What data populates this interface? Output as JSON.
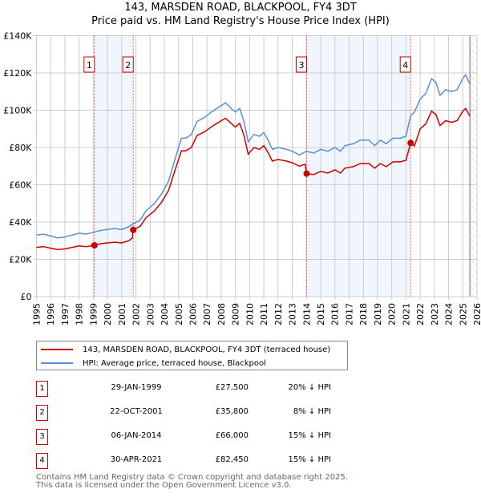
{
  "title_line1": "143, MARSDEN ROAD, BLACKPOOL, FY4 3DT",
  "title_line2": "Price paid vs. HM Land Registry's House Price Index (HPI)",
  "chart_data": {
    "type": "line",
    "title": "143, MARSDEN ROAD, BLACKPOOL, FY4 3DT — Price paid vs. HM Land Registry's House Price Index (HPI)",
    "xlim": [
      1995,
      2026
    ],
    "ylim": [
      0,
      140000
    ],
    "x_ticks": [
      "1995",
      "1996",
      "1997",
      "1998",
      "1999",
      "2000",
      "2001",
      "2002",
      "2003",
      "2004",
      "2005",
      "2006",
      "2007",
      "2008",
      "2009",
      "2010",
      "2011",
      "2012",
      "2013",
      "2014",
      "2015",
      "2016",
      "2017",
      "2018",
      "2019",
      "2020",
      "2021",
      "2022",
      "2023",
      "2024",
      "2025",
      "2026"
    ],
    "y_ticks": [
      {
        "v": 0,
        "label": "£0"
      },
      {
        "v": 20000,
        "label": "£20K"
      },
      {
        "v": 40000,
        "label": "£40K"
      },
      {
        "v": 60000,
        "label": "£60K"
      },
      {
        "v": 80000,
        "label": "£80K"
      },
      {
        "v": 100000,
        "label": "£100K"
      },
      {
        "v": 120000,
        "label": "£120K"
      },
      {
        "v": 140000,
        "label": "£140K"
      }
    ],
    "grid": true,
    "series": [
      {
        "name": "143, MARSDEN ROAD, BLACKPOOL, FY4 3DT (terraced house)",
        "color": "#cc0000",
        "x": [
          1995.0,
          1995.5,
          1996.0,
          1996.5,
          1997.0,
          1997.5,
          1998.0,
          1998.5,
          1999.08,
          1999.5,
          2000.0,
          2000.5,
          2001.0,
          2001.5,
          2001.75,
          2001.81,
          2002.3,
          2002.7,
          2003.3,
          2003.8,
          2004.3,
          2004.8,
          2005.2,
          2005.5,
          2005.9,
          2006.3,
          2006.8,
          2007.3,
          2007.7,
          2008.3,
          2008.7,
          2009.0,
          2009.3,
          2009.6,
          2009.9,
          2010.3,
          2010.7,
          2011.0,
          2011.3,
          2011.6,
          2012.0,
          2012.6,
          2013.0,
          2013.5,
          2013.9,
          2014.01,
          2014.5,
          2015.0,
          2015.5,
          2016.0,
          2016.4,
          2016.7,
          2017.3,
          2017.8,
          2018.4,
          2018.8,
          2019.2,
          2019.6,
          2020.1,
          2020.6,
          2021.0,
          2021.33,
          2021.6,
          2022.0,
          2022.4,
          2022.8,
          2023.1,
          2023.4,
          2023.8,
          2024.2,
          2024.6,
          2025.0,
          2025.2,
          2025.5
        ],
        "y": [
          26400,
          26800,
          26000,
          25200,
          25600,
          26400,
          27200,
          26800,
          27500,
          28400,
          28800,
          29200,
          28800,
          30000,
          31500,
          35800,
          37700,
          42300,
          46000,
          50600,
          57000,
          69000,
          78200,
          78200,
          80000,
          86500,
          88300,
          91000,
          93000,
          95700,
          93000,
          91000,
          93000,
          86500,
          76400,
          80000,
          79000,
          81000,
          77300,
          72700,
          73600,
          72700,
          71800,
          70000,
          71000,
          66000,
          65500,
          67200,
          66300,
          68000,
          66300,
          68900,
          69700,
          71400,
          71400,
          68900,
          71400,
          69700,
          72300,
          72300,
          73100,
          82450,
          80800,
          90000,
          92700,
          99500,
          97800,
          91800,
          94400,
          93500,
          94400,
          99500,
          101000,
          96900
        ]
      },
      {
        "name": "HPI: Average price, terraced house, Blackpool",
        "color": "#5b8fd4",
        "x": [
          1995.0,
          1995.5,
          1996.0,
          1996.5,
          1997.0,
          1997.5,
          1998.0,
          1998.5,
          1999.0,
          1999.5,
          2000.0,
          2000.5,
          2001.0,
          2001.5,
          2001.8,
          2002.3,
          2002.7,
          2003.3,
          2003.8,
          2004.3,
          2004.8,
          2005.2,
          2005.5,
          2005.9,
          2006.3,
          2006.8,
          2007.3,
          2007.7,
          2008.3,
          2008.7,
          2009.0,
          2009.3,
          2009.6,
          2009.9,
          2010.3,
          2010.7,
          2011.0,
          2011.3,
          2011.6,
          2012.0,
          2012.6,
          2013.0,
          2013.5,
          2014.0,
          2014.5,
          2015.0,
          2015.5,
          2016.0,
          2016.4,
          2016.7,
          2017.3,
          2017.8,
          2018.4,
          2018.8,
          2019.2,
          2019.6,
          2020.1,
          2020.6,
          2021.0,
          2021.33,
          2021.6,
          2022.0,
          2022.4,
          2022.8,
          2023.1,
          2023.4,
          2023.8,
          2024.2,
          2024.6,
          2025.0,
          2025.2,
          2025.5
        ],
        "y": [
          33000,
          33500,
          32500,
          31500,
          32000,
          33000,
          34000,
          33500,
          34500,
          35500,
          36000,
          36500,
          36000,
          37500,
          39000,
          41000,
          46000,
          50000,
          55000,
          62000,
          75000,
          85000,
          85000,
          87000,
          94000,
          96000,
          99000,
          101000,
          104000,
          101000,
          99000,
          101000,
          94000,
          83000,
          87000,
          86000,
          88000,
          84000,
          79000,
          80000,
          79000,
          78000,
          76000,
          78000,
          77000,
          79000,
          78000,
          80000,
          78000,
          81000,
          82000,
          84000,
          84000,
          81000,
          84000,
          82000,
          85000,
          85000,
          86000,
          97000,
          99000,
          106000,
          109000,
          117000,
          115000,
          108000,
          111000,
          110000,
          111000,
          117000,
          119000,
          114000
        ]
      }
    ],
    "annotations": [
      {
        "label": "1",
        "x": 1999.08,
        "y": 27500
      },
      {
        "label": "2",
        "x": 2001.81,
        "y": 35800
      },
      {
        "label": "3",
        "x": 2014.01,
        "y": 66000
      },
      {
        "label": "4",
        "x": 2021.33,
        "y": 82450
      }
    ],
    "shaded_ranges": [
      [
        1999.08,
        2001.81
      ],
      [
        2014.01,
        2021.33
      ]
    ],
    "hatched_from": 2025.5,
    "legend_position": "below"
  },
  "legend": [
    {
      "label": "143, MARSDEN ROAD, BLACKPOOL, FY4 3DT (terraced house)",
      "color": "#cc0000"
    },
    {
      "label": "HPI: Average price, terraced house, Blackpool",
      "color": "#5b8fd4"
    }
  ],
  "transactions": [
    {
      "num": "1",
      "date": "29-JAN-1999",
      "price": "£27,500",
      "hpi": "20% ↓ HPI"
    },
    {
      "num": "2",
      "date": "22-OCT-2001",
      "price": "£35,800",
      "hpi": "8% ↓ HPI"
    },
    {
      "num": "3",
      "date": "06-JAN-2014",
      "price": "£66,000",
      "hpi": "15% ↓ HPI"
    },
    {
      "num": "4",
      "date": "30-APR-2021",
      "price": "£82,450",
      "hpi": "15% ↓ HPI"
    }
  ],
  "footer_line1": "Contains HM Land Registry data © Crown copyright and database right 2025.",
  "footer_line2": "This data is licensed under the Open Government Licence v3.0."
}
